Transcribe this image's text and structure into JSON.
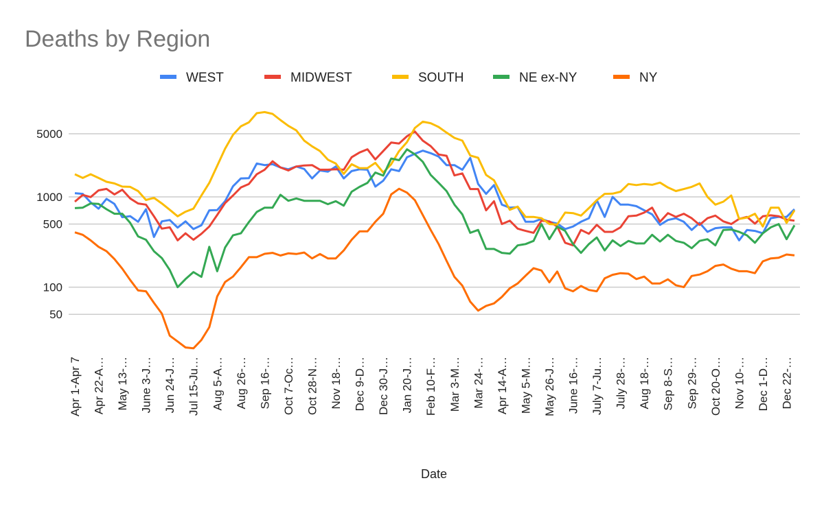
{
  "chart_data": {
    "type": "line",
    "title": "Deaths by Region",
    "xlabel": "Date",
    "ylabel": "",
    "y_scale": "log",
    "ylim": [
      20,
      11000
    ],
    "y_ticks": [
      50,
      100,
      500,
      1000,
      5000
    ],
    "y_tick_labels": [
      "50",
      "100",
      "500",
      "1000",
      "5000"
    ],
    "grid": true,
    "legend_position": "top",
    "x_tick_every": 3,
    "x_tick_labels": [
      "Apr 1-Apr 7",
      "Apr 22-A…",
      "May 13-…",
      "June 3-J…",
      "Jun 24-J…",
      "Jul 15-Ju…",
      "Aug 5-A…",
      "Aug 26-…",
      "Sep 16-…",
      "Oct 7-Oc…",
      "Oct 28-N…",
      "Nov 18-…",
      "Dec 9-D…",
      "Dec 30-J…",
      "Jan 20-J…",
      "Feb 10-F…",
      "Mar 3-M…",
      "Mar 24-…",
      "Apr 14-A…",
      "May 5-M…",
      "May 26-J…",
      "June 16-…",
      "July 7-Ju…",
      "July 28-…",
      "Aug 18-…",
      "Sep 8-S…",
      "Sep 29-…",
      "Oct 20-O…",
      "Nov 10-…",
      "Dec 1-D…",
      "Dec 22-…"
    ],
    "series": [
      {
        "name": "WEST",
        "color": "#4285f4",
        "values": [
          1100,
          1080,
          870,
          740,
          950,
          835,
          595,
          612,
          530,
          730,
          360,
          535,
          555,
          457,
          535,
          440,
          485,
          710,
          715,
          895,
          1310,
          1600,
          1610,
          2340,
          2250,
          2300,
          2120,
          2020,
          2170,
          2040,
          1600,
          1960,
          1900,
          2170,
          1600,
          1930,
          2020,
          2000,
          1300,
          1510,
          2020,
          1930,
          2750,
          3000,
          3250,
          3050,
          2800,
          2250,
          2250,
          2000,
          2700,
          1390,
          1080,
          1350,
          820,
          760,
          770,
          530,
          530,
          570,
          530,
          505,
          440,
          470,
          530,
          580,
          920,
          600,
          1000,
          820,
          820,
          790,
          710,
          640,
          490,
          555,
          580,
          530,
          430,
          515,
          410,
          450,
          460,
          460,
          330,
          430,
          420,
          395,
          580,
          600,
          600,
          730
        ]
      },
      {
        "name": "MIDWEST",
        "color": "#ea4335",
        "values": [
          885,
          1050,
          995,
          1180,
          1225,
          1065,
          1200,
          960,
          845,
          820,
          610,
          445,
          460,
          330,
          395,
          335,
          390,
          470,
          630,
          855,
          1035,
          1270,
          1390,
          1780,
          2000,
          2480,
          2120,
          1960,
          2170,
          2230,
          2250,
          2000,
          2000,
          2020,
          2000,
          2750,
          3100,
          3370,
          2600,
          3220,
          4000,
          3900,
          4700,
          5300,
          4200,
          3650,
          2950,
          2850,
          1730,
          1820,
          1220,
          1220,
          710,
          895,
          500,
          545,
          445,
          420,
          400,
          545,
          535,
          470,
          310,
          290,
          430,
          390,
          490,
          410,
          410,
          460,
          610,
          620,
          670,
          760,
          530,
          660,
          600,
          650,
          580,
          490,
          580,
          620,
          535,
          500,
          570,
          600,
          505,
          610,
          625,
          610,
          560,
          545
        ]
      },
      {
        "name": "SOUTH",
        "color": "#fbbc04",
        "values": [
          1780,
          1620,
          1780,
          1620,
          1470,
          1410,
          1300,
          1290,
          1160,
          925,
          975,
          845,
          720,
          610,
          685,
          740,
          1035,
          1430,
          2210,
          3420,
          4860,
          6050,
          6690,
          8460,
          8700,
          8300,
          7100,
          6130,
          5450,
          4200,
          3630,
          3220,
          2580,
          2340,
          1800,
          2300,
          2080,
          2080,
          2380,
          1860,
          2300,
          3220,
          4050,
          5800,
          6800,
          6550,
          5950,
          5150,
          4500,
          4200,
          2870,
          2710,
          1750,
          1530,
          1035,
          720,
          780,
          600,
          600,
          580,
          500,
          495,
          670,
          660,
          620,
          750,
          920,
          1080,
          1085,
          1140,
          1390,
          1350,
          1390,
          1360,
          1440,
          1270,
          1160,
          1220,
          1290,
          1410,
          1000,
          820,
          885,
          1035,
          570,
          590,
          650,
          470,
          760,
          760,
          515,
          710
        ]
      },
      {
        "name": "NE ex-NY",
        "color": "#34a853",
        "values": [
          750,
          760,
          845,
          835,
          730,
          650,
          650,
          515,
          365,
          335,
          250,
          210,
          155,
          100,
          123,
          147,
          130,
          280,
          150,
          275,
          375,
          395,
          525,
          680,
          760,
          760,
          1055,
          905,
          960,
          905,
          905,
          905,
          830,
          895,
          800,
          1140,
          1290,
          1430,
          1860,
          1720,
          2660,
          2550,
          3360,
          2960,
          2450,
          1750,
          1430,
          1160,
          820,
          640,
          400,
          430,
          265,
          265,
          240,
          235,
          290,
          300,
          325,
          500,
          340,
          470,
          420,
          300,
          240,
          300,
          355,
          255,
          330,
          285,
          325,
          305,
          305,
          380,
          320,
          380,
          325,
          310,
          270,
          325,
          340,
          290,
          430,
          435,
          410,
          375,
          310,
          395,
          460,
          500,
          340,
          485
        ]
      },
      {
        "name": "NY",
        "color": "#ff6d01",
        "values": [
          405,
          380,
          330,
          280,
          250,
          205,
          160,
          120,
          92,
          90,
          67,
          51,
          29,
          25,
          21.5,
          21,
          26,
          36,
          79,
          114,
          131,
          166,
          215,
          215,
          234,
          240,
          224,
          237,
          233,
          242,
          208,
          233,
          208,
          208,
          255,
          335,
          415,
          415,
          530,
          650,
          1065,
          1230,
          1115,
          920,
          630,
          430,
          300,
          196,
          130,
          104,
          69,
          55,
          62,
          66,
          78,
          97,
          110,
          134,
          162,
          153,
          113,
          149,
          97,
          90,
          103,
          93,
          90,
          125,
          137,
          143,
          141,
          123,
          131,
          110,
          110,
          122,
          105,
          100,
          133,
          138,
          150,
          172,
          178,
          160,
          150,
          150,
          143,
          193,
          208,
          212,
          230,
          225
        ]
      }
    ]
  }
}
